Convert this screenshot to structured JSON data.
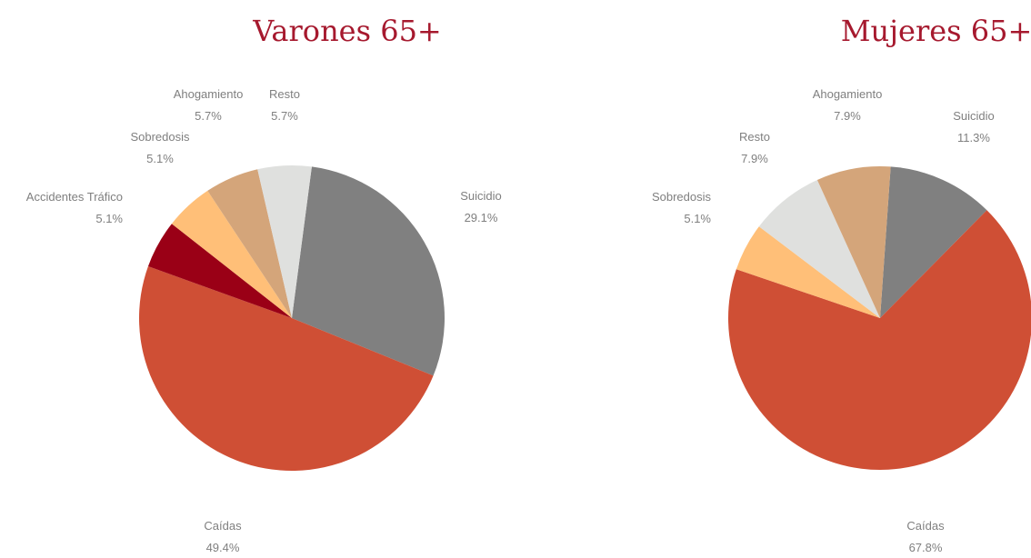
{
  "chart_data": [
    {
      "type": "pie",
      "title": "Varones 65+",
      "categories": [
        "Suicidio",
        "Caídas",
        "Accidentes Tráfico",
        "Sobredosis",
        "Ahogamiento",
        "Resto"
      ],
      "values": [
        29.1,
        49.4,
        5.1,
        5.1,
        5.7,
        5.7
      ],
      "value_labels": [
        "29.1%",
        "49.4%",
        "5.1%",
        "5.1%",
        "5.7%",
        "5.7%"
      ],
      "colors": [
        "#808080",
        "#cf4f35",
        "#9a0016",
        "#ffbf78",
        "#d4a57a",
        "#dfe0de"
      ]
    },
    {
      "type": "pie",
      "title": "Mujeres 65+",
      "categories": [
        "Suicidio",
        "Caídas",
        "Sobredosis",
        "Resto",
        "Ahogamiento"
      ],
      "values": [
        11.3,
        67.8,
        5.1,
        7.9,
        7.9
      ],
      "value_labels": [
        "11.3%",
        "67.8%",
        "5.1%",
        "7.9%",
        "7.9%"
      ],
      "colors": [
        "#808080",
        "#cf4f35",
        "#ffbf78",
        "#dfe0de",
        "#d4a57a"
      ]
    }
  ]
}
